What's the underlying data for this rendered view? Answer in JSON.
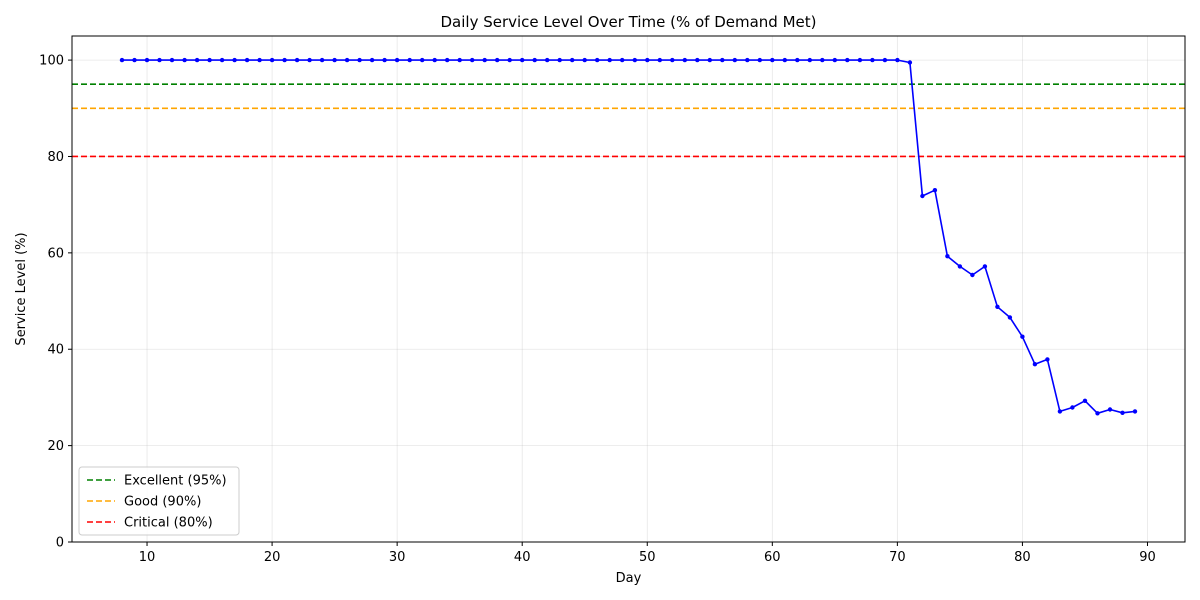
{
  "chart_data": {
    "type": "line",
    "title": "Daily Service Level Over Time (% of Demand Met)",
    "xlabel": "Day",
    "ylabel": "Service Level (%)",
    "xlim": [
      4,
      93
    ],
    "ylim": [
      0,
      105
    ],
    "xticks": [
      10,
      20,
      30,
      40,
      50,
      60,
      70,
      80,
      90
    ],
    "yticks": [
      0,
      20,
      40,
      60,
      80,
      100
    ],
    "grid": true,
    "legend_position": "lower-left",
    "series": [
      {
        "color": "#0000ff",
        "marker": "dot",
        "x": [
          8,
          9,
          10,
          11,
          12,
          13,
          14,
          15,
          16,
          17,
          18,
          19,
          20,
          21,
          22,
          23,
          24,
          25,
          26,
          27,
          28,
          29,
          30,
          31,
          32,
          33,
          34,
          35,
          36,
          37,
          38,
          39,
          40,
          41,
          42,
          43,
          44,
          45,
          46,
          47,
          48,
          49,
          50,
          51,
          52,
          53,
          54,
          55,
          56,
          57,
          58,
          59,
          60,
          61,
          62,
          63,
          64,
          65,
          66,
          67,
          68,
          69,
          70,
          71,
          72,
          73,
          74,
          75,
          76,
          77,
          78,
          79,
          80,
          81,
          82,
          83,
          84,
          85,
          86,
          87,
          88,
          89
        ],
        "y": [
          100,
          100,
          100,
          100,
          100,
          100,
          100,
          100,
          100,
          100,
          100,
          100,
          100,
          100,
          100,
          100,
          100,
          100,
          100,
          100,
          100,
          100,
          100,
          100,
          100,
          100,
          100,
          100,
          100,
          100,
          100,
          100,
          100,
          100,
          100,
          100,
          100,
          100,
          100,
          100,
          100,
          100,
          100,
          100,
          100,
          100,
          100,
          100,
          100,
          100,
          100,
          100,
          100,
          100,
          100,
          100,
          100,
          100,
          100,
          100,
          100,
          100,
          100,
          99.5,
          71.8,
          73.0,
          59.3,
          57.2,
          55.4,
          57.2,
          48.8,
          46.6,
          42.6,
          36.9,
          37.9,
          27.1,
          27.9,
          29.3,
          26.7,
          27.5,
          26.8,
          27.1
        ]
      }
    ],
    "reference_lines": [
      {
        "name": "Excellent (95%)",
        "y": 95,
        "color": "#008000",
        "style": "dashed"
      },
      {
        "name": "Good (90%)",
        "y": 90,
        "color": "#ffa500",
        "style": "dashed"
      },
      {
        "name": "Critical (80%)",
        "y": 80,
        "color": "#ff0000",
        "style": "dashed"
      }
    ]
  }
}
